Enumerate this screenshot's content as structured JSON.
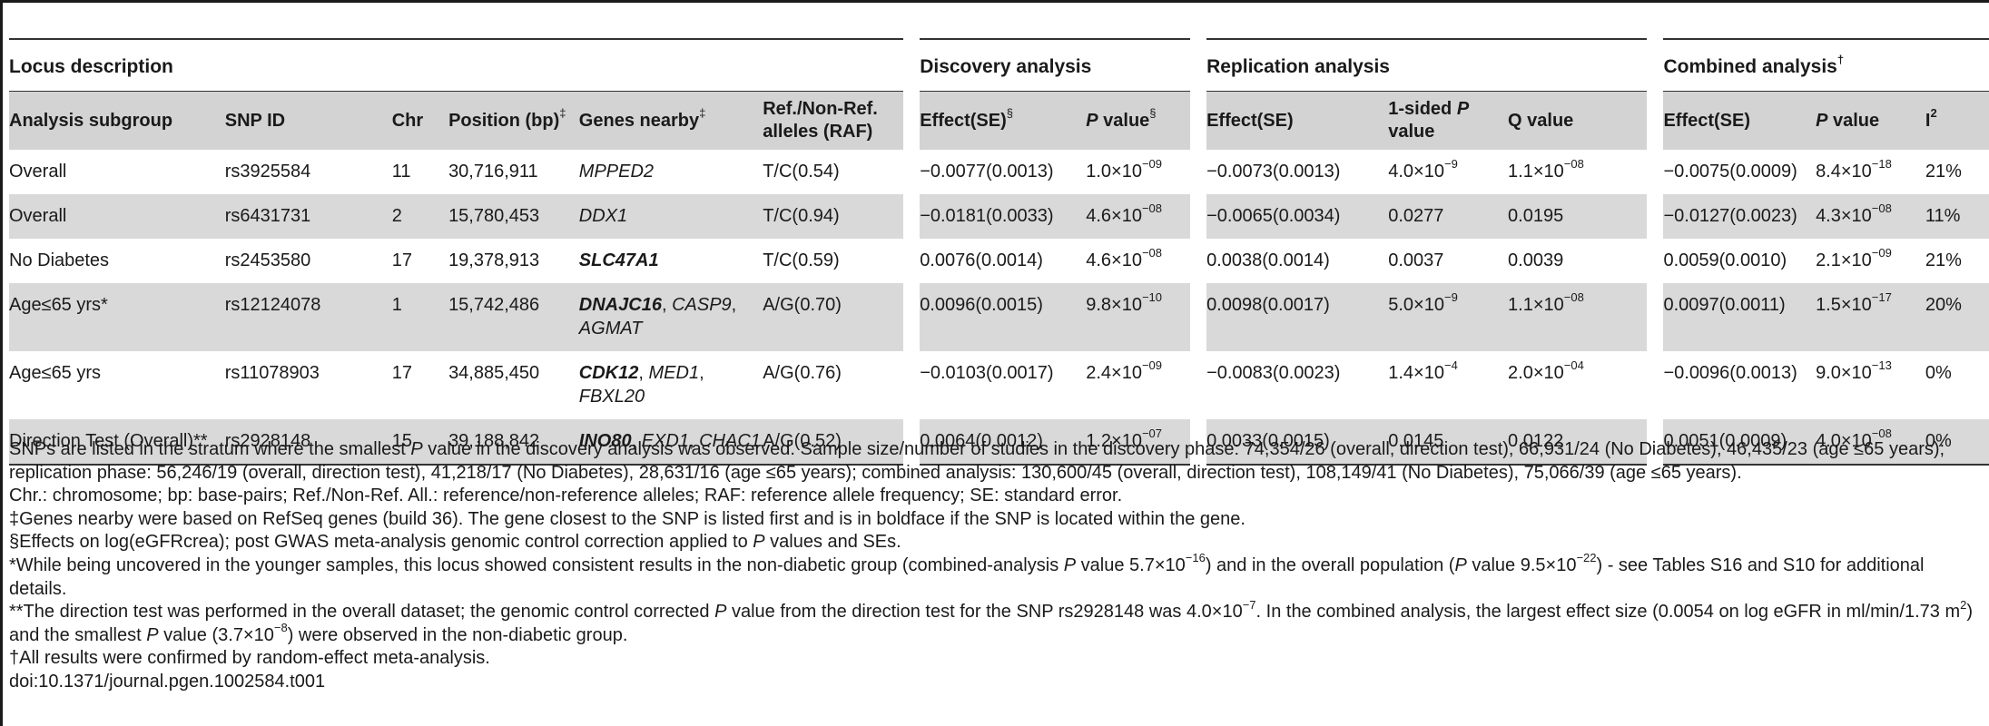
{
  "table": {
    "group_headers": {
      "locus": "Locus description",
      "discovery": "Discovery analysis",
      "replication": "Replication analysis",
      "combined": "Combined analysis",
      "combined_mark": "†"
    },
    "columns": {
      "subgroup": "Analysis subgroup",
      "snp": "SNP ID",
      "chr": "Chr",
      "position": "Position (bp)",
      "position_mark": "‡",
      "genes": "Genes nearby",
      "genes_mark": "‡",
      "alleles": "Ref./Non-Ref. alleles (RAF)",
      "disc_effect": "Effect(SE)",
      "disc_effect_mark": "§",
      "disc_p_italic": "P",
      "disc_p_rest": " value",
      "disc_p_mark": "§",
      "rep_effect": "Effect(SE)",
      "rep_p_pre": "1-sided ",
      "rep_p_italic": "P",
      "rep_p_rest": " value",
      "rep_q": "Q value",
      "comb_effect": "Effect(SE)",
      "comb_p_italic": "P",
      "comb_p_rest": " value",
      "i2": "I",
      "i2_sup": "2"
    },
    "rows": [
      {
        "subgroup": "Overall",
        "snp": "rs3925584",
        "chr": "11",
        "position": "30,716,911",
        "genes": [
          {
            "t": "MPPED2",
            "b": false
          }
        ],
        "alleles": "T/C(0.54)",
        "disc_effect": "−0.0077(0.0013)",
        "disc_p": "1.0×10",
        "disc_p_exp": "−09",
        "rep_effect": "−0.0073(0.0013)",
        "rep_p": "4.0×10",
        "rep_p_exp": "−9",
        "rep_q": "1.1×10",
        "rep_q_exp": "−08",
        "comb_effect": "−0.0075(0.0009)",
        "comb_p": "8.4×10",
        "comb_p_exp": "−18",
        "i2": "21%"
      },
      {
        "subgroup": "Overall",
        "snp": "rs6431731",
        "chr": "2",
        "position": "15,780,453",
        "genes": [
          {
            "t": "DDX1",
            "b": false
          }
        ],
        "alleles": "T/C(0.94)",
        "disc_effect": "−0.0181(0.0033)",
        "disc_p": "4.6×10",
        "disc_p_exp": "−08",
        "rep_effect": "−0.0065(0.0034)",
        "rep_p": "0.0277",
        "rep_p_exp": "",
        "rep_q": "0.0195",
        "rep_q_exp": "",
        "comb_effect": "−0.0127(0.0023)",
        "comb_p": "4.3×10",
        "comb_p_exp": "−08",
        "i2": "11%"
      },
      {
        "subgroup": "No Diabetes",
        "snp": "rs2453580",
        "chr": "17",
        "position": "19,378,913",
        "genes": [
          {
            "t": "SLC47A1",
            "b": true
          }
        ],
        "alleles": "T/C(0.59)",
        "disc_effect": "0.0076(0.0014)",
        "disc_p": "4.6×10",
        "disc_p_exp": "−08",
        "rep_effect": "0.0038(0.0014)",
        "rep_p": "0.0037",
        "rep_p_exp": "",
        "rep_q": "0.0039",
        "rep_q_exp": "",
        "comb_effect": "0.0059(0.0010)",
        "comb_p": "2.1×10",
        "comb_p_exp": "−09",
        "i2": "21%"
      },
      {
        "subgroup": "Age≤65 yrs*",
        "snp": "rs12124078",
        "chr": "1",
        "position": "15,742,486",
        "genes": [
          {
            "t": "DNAJC16",
            "b": true
          },
          {
            "t": ", ",
            "sep": true
          },
          {
            "t": "CASP9",
            "b": false
          },
          {
            "t": ",",
            "sep": true
          },
          {
            "br": true
          },
          {
            "t": "AGMAT",
            "b": false
          }
        ],
        "alleles": "A/G(0.70)",
        "disc_effect": "0.0096(0.0015)",
        "disc_p": "9.8×10",
        "disc_p_exp": "−10",
        "rep_effect": "0.0098(0.0017)",
        "rep_p": "5.0×10",
        "rep_p_exp": "−9",
        "rep_q": "1.1×10",
        "rep_q_exp": "−08",
        "comb_effect": "0.0097(0.0011)",
        "comb_p": "1.5×10",
        "comb_p_exp": "−17",
        "i2": "20%"
      },
      {
        "subgroup": "Age≤65 yrs",
        "snp": "rs11078903",
        "chr": "17",
        "position": "34,885,450",
        "genes": [
          {
            "t": "CDK12",
            "b": true
          },
          {
            "t": ", ",
            "sep": true
          },
          {
            "t": "MED1",
            "b": false
          },
          {
            "t": ",",
            "sep": true
          },
          {
            "br": true
          },
          {
            "t": "FBXL20",
            "b": false
          }
        ],
        "alleles": "A/G(0.76)",
        "disc_effect": "−0.0103(0.0017)",
        "disc_p": "2.4×10",
        "disc_p_exp": "−09",
        "rep_effect": "−0.0083(0.0023)",
        "rep_p": "1.4×10",
        "rep_p_exp": "−4",
        "rep_q": "2.0×10",
        "rep_q_exp": "−04",
        "comb_effect": "−0.0096(0.0013)",
        "comb_p": "9.0×10",
        "comb_p_exp": "−13",
        "i2": "0%"
      },
      {
        "subgroup": "Direction Test (Overall)**",
        "snp": "rs2928148",
        "chr": "15",
        "position": "39,188,842",
        "genes": [
          {
            "t": "INO80",
            "b": true
          },
          {
            "t": ", ",
            "sep": true
          },
          {
            "t": "EXD1",
            "b": false
          },
          {
            "t": ", ",
            "sep": true
          },
          {
            "t": "CHAC1",
            "b": false
          }
        ],
        "alleles": "A/G(0.52)",
        "disc_effect": "0.0064(0.0012)",
        "disc_p": "1.2×10",
        "disc_p_exp": "−07",
        "rep_effect": "0.0033(0.0015)",
        "rep_p": "0.0145",
        "rep_p_exp": "",
        "rep_q": "0.0122",
        "rep_q_exp": "",
        "comb_effect": "0.0051(0.0009)",
        "comb_p": "4.0×10",
        "comb_p_exp": "−08",
        "i2": "0%"
      }
    ]
  },
  "notes": {
    "n1a": "SNPs are listed in the stratum where the smallest ",
    "n1b": "P",
    "n1c": " value in the discovery analysis was observed. Sample size/number of studies in the discovery phase: 74,354/26 (overall, direction test), 66,931/24 (No Diabetes), 46,435/23 (age ≤65 years); replication phase: 56,246/19 (overall, direction test), 41,218/17 (No Diabetes), 28,631/16 (age ≤65 years); combined analysis: 130,600/45 (overall, direction test), 108,149/41 (No Diabetes), 75,066/39 (age ≤65 years).",
    "n2": "Chr.: chromosome; bp: base-pairs; Ref./Non-Ref. All.: reference/non-reference alleles; RAF: reference allele frequency; SE: standard error.",
    "n3": "‡Genes nearby were based on RefSeq genes (build 36). The gene closest to the SNP is listed first and is in boldface if the SNP is located within the gene.",
    "n4a": "§Effects on log(eGFRcrea); post GWAS meta-analysis genomic control correction applied to ",
    "n4b": "P",
    "n4c": " values and SEs.",
    "n5a": "*While being uncovered in the younger samples, this locus showed consistent results in the non-diabetic group (combined-analysis ",
    "n5b": "P",
    "n5c": " value 5.7×10",
    "n5d": "−16",
    "n5e": ") and in the overall population (",
    "n5f": "P",
    "n5g": " value 9.5×10",
    "n5h": "−22",
    "n5i": ") - see Tables S16 and S10 for additional details.",
    "n6a": "**The direction test was performed in the overall dataset; the genomic control corrected ",
    "n6b": "P",
    "n6c": " value from the direction test for the SNP rs2928148 was 4.0×10",
    "n6d": "−7",
    "n6e": ". In the combined analysis, the largest effect size (0.0054 on log eGFR in ml/min/1.73 m",
    "n6f": "2",
    "n6g": ") and the smallest ",
    "n6h": "P",
    "n6i": " value (3.7×10",
    "n6j": "−8",
    "n6k": ") were observed in the non-diabetic group.",
    "n7": "†All results were confirmed by random-effect meta-analysis.",
    "n8": "doi:10.1371/journal.pgen.1002584.t001"
  }
}
